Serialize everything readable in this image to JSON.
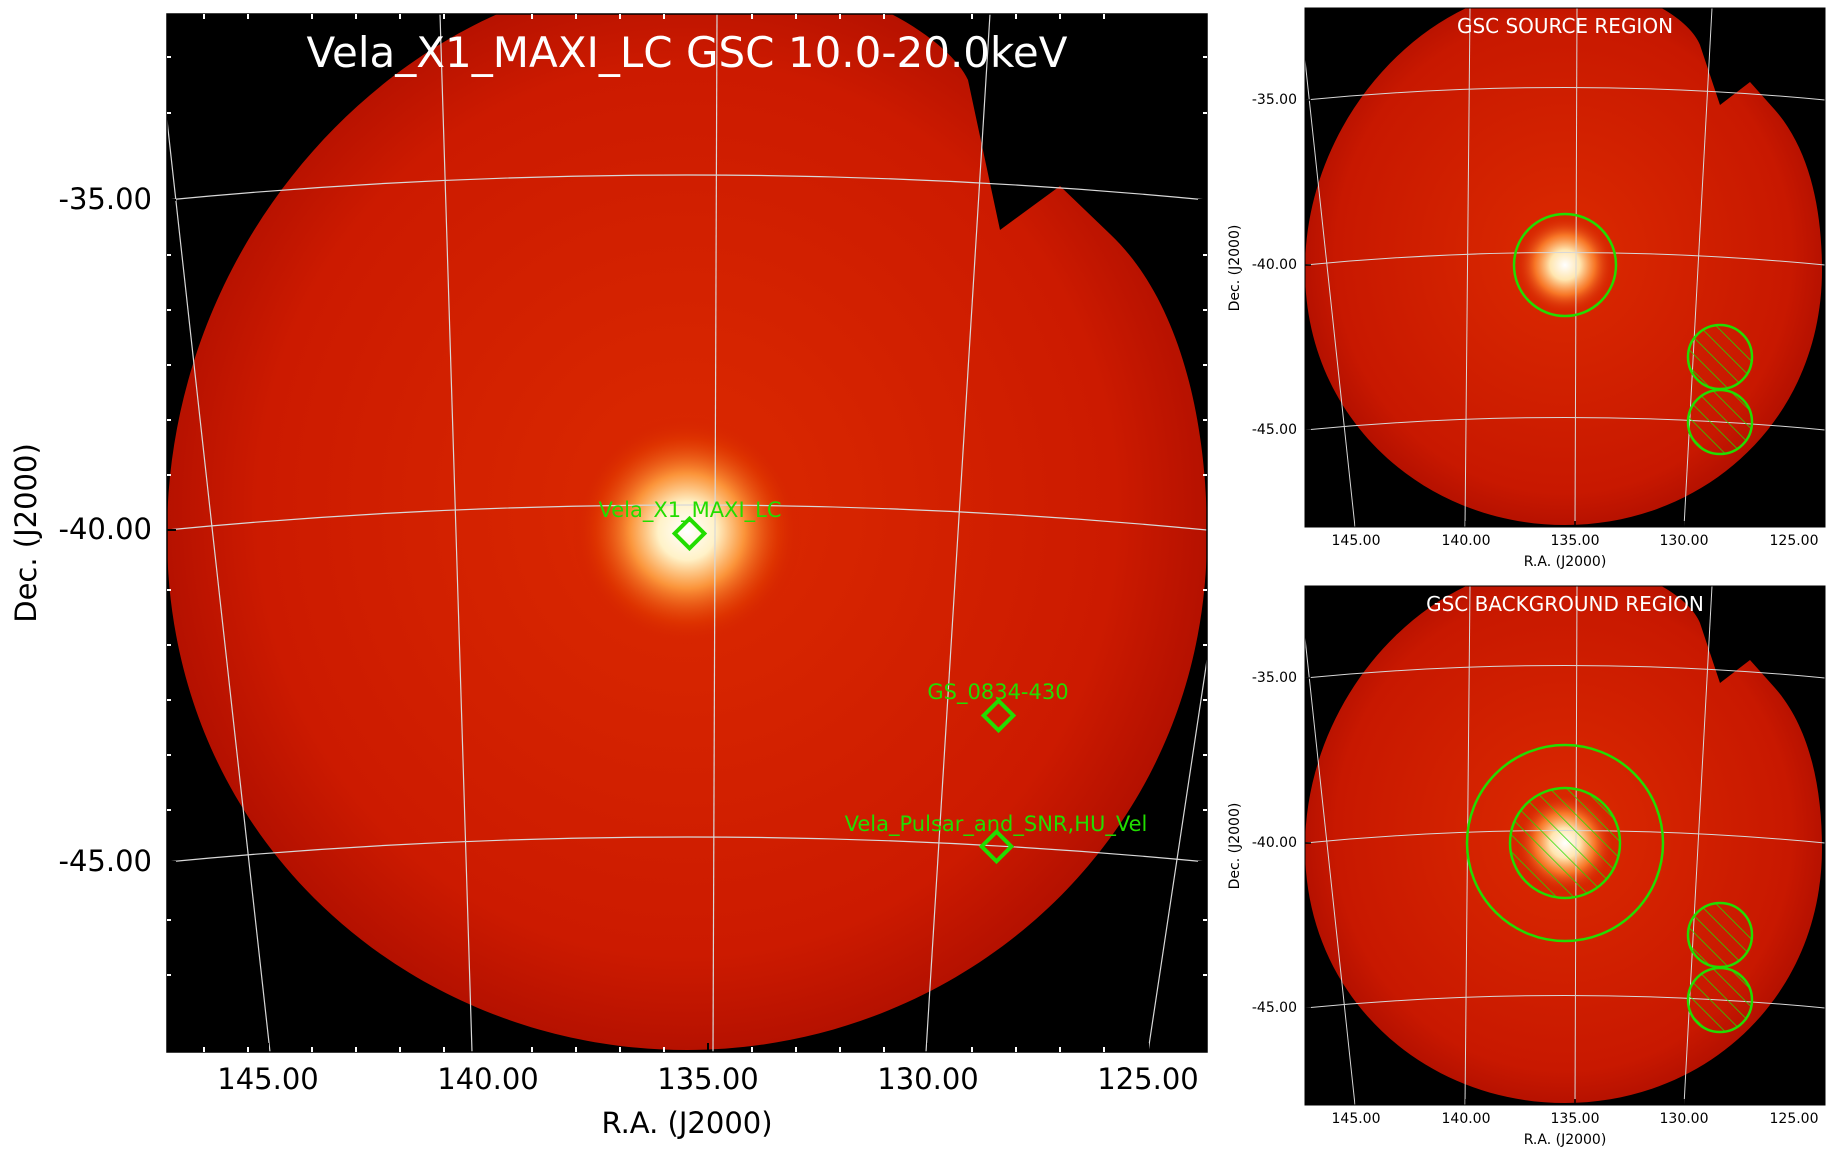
{
  "main": {
    "title": "Vela_X1_MAXI_LC GSC 10.0-20.0keV",
    "xlabel": "R.A. (J2000)",
    "ylabel": "Dec. (J2000)",
    "xticks": [
      "145.00",
      "140.00",
      "135.00",
      "130.00",
      "125.00"
    ],
    "yticks": [
      "-35.00",
      "-40.00",
      "-45.00"
    ],
    "sources": [
      {
        "name": "Vela_X1_MAXI_LC",
        "ra": 135.5,
        "dec": -40.0
      },
      {
        "name": "GS_0834-430",
        "ra": 128.3,
        "dec": -42.8
      },
      {
        "name": "Vela_Pulsar_and_SNR,HU_Vel",
        "ra": 128.4,
        "dec": -44.8
      }
    ]
  },
  "source_panel": {
    "title": "GSC SOURCE REGION",
    "xlabel": "R.A. (J2000)",
    "ylabel": "Dec. (J2000)",
    "xticks": [
      "145.00",
      "140.00",
      "135.00",
      "130.00",
      "125.00"
    ],
    "yticks": [
      "-35.00",
      "-40.00",
      "-45.00"
    ]
  },
  "background_panel": {
    "title": "GSC BACKGROUND REGION",
    "xlabel": "R.A. (J2000)",
    "ylabel": "Dec. (J2000)",
    "xticks": [
      "145.00",
      "140.00",
      "135.00",
      "130.00",
      "125.00"
    ],
    "yticks": [
      "-35.00",
      "-40.00",
      "-45.00"
    ]
  },
  "colors": {
    "image_red": "#cc1a00",
    "marker_green": "#22dd00",
    "grid": "#d8d8d8"
  }
}
